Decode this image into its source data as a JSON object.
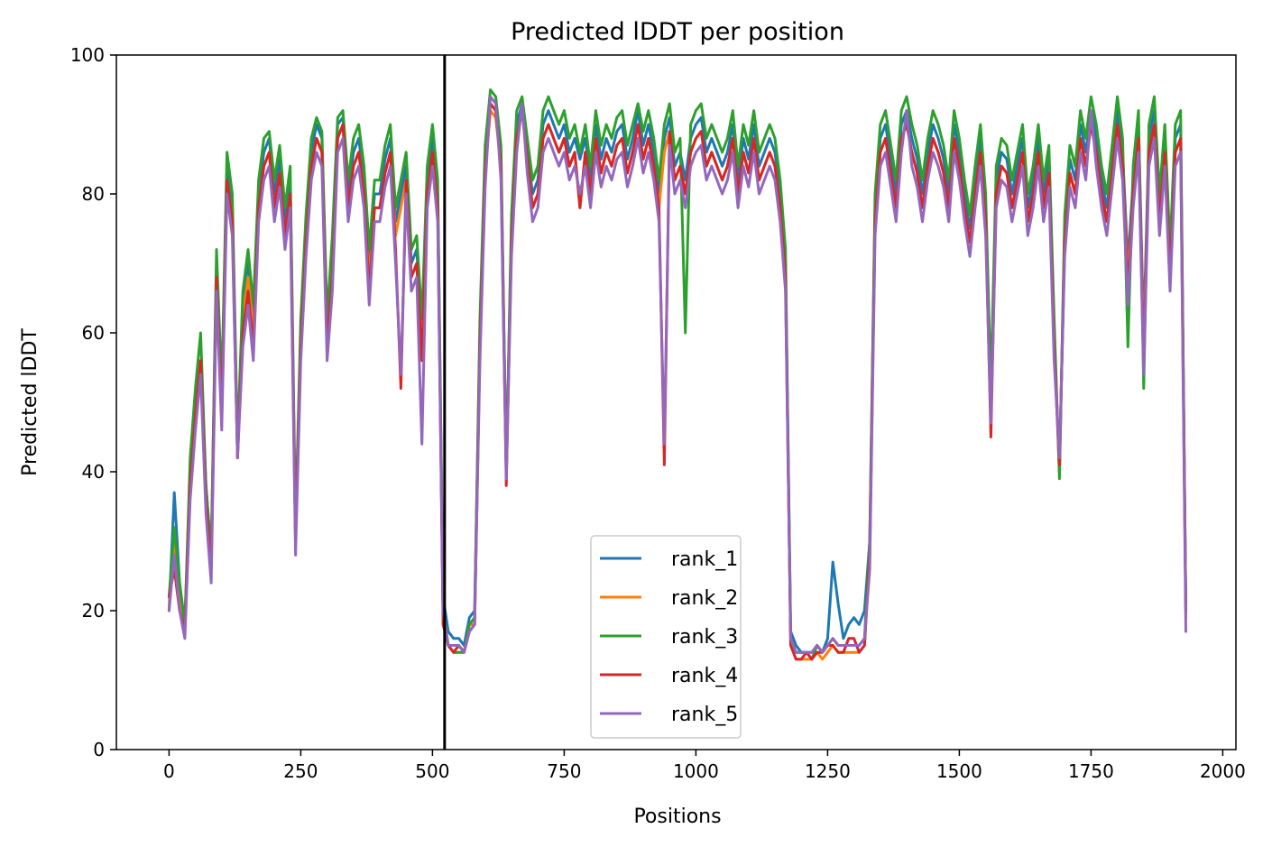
{
  "chart_data": {
    "type": "line",
    "title": "Predicted lDDT per position",
    "xlabel": "Positions",
    "ylabel": "Predicted lDDT",
    "xlim": [
      -100,
      2025
    ],
    "ylim": [
      0,
      100
    ],
    "xticks": [
      "0",
      "250",
      "500",
      "750",
      "1000",
      "1250",
      "1500",
      "1750",
      "2000"
    ],
    "yticks": [
      "0",
      "20",
      "40",
      "60",
      "80",
      "100"
    ],
    "vline_x": 523,
    "legend": {
      "placement": "lower-center"
    },
    "grid": false,
    "x": [
      0,
      10,
      20,
      30,
      40,
      50,
      60,
      70,
      80,
      90,
      100,
      110,
      120,
      130,
      140,
      150,
      160,
      170,
      180,
      190,
      200,
      210,
      220,
      230,
      240,
      250,
      260,
      270,
      280,
      290,
      300,
      310,
      320,
      330,
      340,
      350,
      360,
      370,
      380,
      390,
      400,
      410,
      420,
      430,
      440,
      450,
      460,
      470,
      480,
      490,
      500,
      510,
      520,
      530,
      540,
      550,
      560,
      570,
      580,
      590,
      600,
      610,
      620,
      630,
      640,
      650,
      660,
      670,
      680,
      690,
      700,
      710,
      720,
      730,
      740,
      750,
      760,
      770,
      780,
      790,
      800,
      810,
      820,
      830,
      840,
      850,
      860,
      870,
      880,
      890,
      900,
      910,
      920,
      930,
      940,
      950,
      960,
      970,
      980,
      990,
      1000,
      1010,
      1020,
      1030,
      1040,
      1050,
      1060,
      1070,
      1080,
      1090,
      1100,
      1110,
      1120,
      1130,
      1140,
      1150,
      1160,
      1170,
      1180,
      1190,
      1200,
      1210,
      1220,
      1230,
      1240,
      1250,
      1260,
      1270,
      1280,
      1290,
      1300,
      1310,
      1320,
      1330,
      1340,
      1350,
      1360,
      1370,
      1380,
      1390,
      1400,
      1410,
      1420,
      1430,
      1440,
      1450,
      1460,
      1470,
      1480,
      1490,
      1500,
      1510,
      1520,
      1530,
      1540,
      1550,
      1560,
      1570,
      1580,
      1590,
      1600,
      1610,
      1620,
      1630,
      1640,
      1650,
      1660,
      1670,
      1680,
      1690,
      1700,
      1710,
      1720,
      1730,
      1740,
      1750,
      1760,
      1770,
      1780,
      1790,
      1800,
      1810,
      1820,
      1830,
      1840,
      1850,
      1860,
      1870,
      1880,
      1890,
      1900,
      1910,
      1920,
      1930
    ],
    "series": [
      {
        "name": "rank_1",
        "color": "#1f77b4",
        "values": [
          20,
          37,
          24,
          18,
          40,
          50,
          56,
          38,
          28,
          70,
          50,
          84,
          78,
          42,
          65,
          70,
          62,
          80,
          86,
          88,
          80,
          85,
          76,
          82,
          30,
          60,
          75,
          86,
          90,
          88,
          60,
          72,
          90,
          91,
          80,
          86,
          88,
          82,
          70,
          80,
          80,
          85,
          88,
          76,
          80,
          84,
          70,
          72,
          60,
          82,
          88,
          80,
          22,
          17,
          16,
          16,
          15,
          19,
          20,
          60,
          85,
          93,
          92,
          85,
          40,
          75,
          90,
          93,
          86,
          80,
          82,
          90,
          92,
          90,
          88,
          90,
          86,
          88,
          85,
          88,
          82,
          90,
          85,
          88,
          86,
          89,
          90,
          85,
          88,
          92,
          87,
          90,
          86,
          80,
          88,
          91,
          84,
          86,
          82,
          88,
          90,
          91,
          86,
          88,
          86,
          84,
          86,
          90,
          82,
          88,
          85,
          90,
          84,
          86,
          88,
          86,
          80,
          70,
          17,
          15,
          14,
          14,
          14,
          15,
          14,
          16,
          27,
          21,
          16,
          18,
          19,
          18,
          20,
          30,
          78,
          88,
          90,
          85,
          80,
          90,
          92,
          88,
          85,
          80,
          86,
          90,
          88,
          85,
          80,
          90,
          86,
          80,
          75,
          82,
          88,
          78,
          50,
          82,
          86,
          85,
          80,
          84,
          88,
          78,
          82,
          88,
          80,
          85,
          60,
          40,
          75,
          85,
          82,
          90,
          86,
          92,
          88,
          82,
          78,
          85,
          92,
          86,
          70,
          82,
          90,
          60,
          88,
          92,
          78,
          88,
          70,
          88,
          90,
          20
        ]
      },
      {
        "name": "rank_2",
        "color": "#ff7f0e",
        "values": [
          20,
          30,
          22,
          17,
          38,
          48,
          55,
          36,
          26,
          68,
          48,
          82,
          76,
          42,
          62,
          68,
          60,
          78,
          84,
          86,
          78,
          83,
          74,
          80,
          30,
          58,
          73,
          84,
          88,
          86,
          58,
          70,
          88,
          90,
          78,
          84,
          86,
          80,
          68,
          78,
          78,
          83,
          86,
          74,
          78,
          82,
          68,
          70,
          58,
          80,
          86,
          78,
          20,
          15,
          14,
          14,
          14,
          18,
          18,
          58,
          83,
          92,
          91,
          84,
          40,
          73,
          88,
          92,
          85,
          78,
          80,
          88,
          90,
          88,
          86,
          88,
          84,
          86,
          78,
          86,
          80,
          88,
          83,
          86,
          84,
          87,
          88,
          83,
          86,
          90,
          85,
          88,
          84,
          78,
          86,
          89,
          82,
          84,
          80,
          86,
          88,
          89,
          84,
          86,
          84,
          82,
          84,
          88,
          80,
          86,
          83,
          88,
          82,
          84,
          86,
          84,
          78,
          68,
          15,
          13,
          13,
          13,
          13,
          14,
          13,
          14,
          15,
          14,
          14,
          14,
          14,
          14,
          15,
          28,
          76,
          86,
          88,
          83,
          78,
          88,
          90,
          86,
          83,
          78,
          84,
          88,
          86,
          83,
          78,
          88,
          84,
          78,
          73,
          80,
          86,
          76,
          48,
          80,
          84,
          83,
          78,
          82,
          86,
          76,
          80,
          86,
          78,
          83,
          58,
          40,
          73,
          83,
          80,
          88,
          84,
          90,
          86,
          80,
          76,
          83,
          90,
          84,
          68,
          80,
          88,
          58,
          86,
          90,
          76,
          86,
          68,
          86,
          88,
          19
        ]
      },
      {
        "name": "rank_3",
        "color": "#2ca02c",
        "values": [
          22,
          32,
          24,
          18,
          42,
          52,
          60,
          38,
          28,
          72,
          52,
          86,
          80,
          44,
          66,
          72,
          64,
          82,
          88,
          89,
          82,
          87,
          78,
          84,
          32,
          62,
          77,
          88,
          91,
          89,
          62,
          74,
          91,
          92,
          82,
          88,
          90,
          84,
          72,
          82,
          82,
          87,
          90,
          78,
          82,
          86,
          72,
          74,
          62,
          84,
          90,
          82,
          20,
          15,
          14,
          14,
          14,
          18,
          19,
          62,
          87,
          95,
          94,
          87,
          40,
          77,
          92,
          94,
          88,
          82,
          84,
          92,
          94,
          92,
          90,
          92,
          88,
          90,
          86,
          90,
          84,
          92,
          87,
          90,
          88,
          91,
          92,
          87,
          90,
          93,
          89,
          92,
          88,
          82,
          90,
          93,
          86,
          88,
          60,
          90,
          92,
          93,
          88,
          90,
          88,
          86,
          88,
          92,
          84,
          90,
          87,
          92,
          86,
          88,
          90,
          88,
          82,
          72,
          16,
          14,
          14,
          14,
          13,
          15,
          14,
          15,
          16,
          15,
          15,
          15,
          15,
          15,
          16,
          30,
          80,
          90,
          92,
          87,
          82,
          92,
          94,
          90,
          87,
          82,
          88,
          92,
          90,
          87,
          82,
          92,
          88,
          82,
          77,
          84,
          90,
          80,
          52,
          84,
          88,
          87,
          82,
          86,
          90,
          80,
          84,
          90,
          82,
          87,
          62,
          39,
          77,
          87,
          84,
          92,
          88,
          94,
          90,
          84,
          80,
          87,
          94,
          88,
          58,
          84,
          92,
          52,
          90,
          94,
          80,
          90,
          72,
          90,
          92,
          20
        ]
      },
      {
        "name": "rank_4",
        "color": "#d62728",
        "values": [
          22,
          26,
          20,
          17,
          38,
          48,
          56,
          36,
          26,
          68,
          48,
          82,
          76,
          42,
          60,
          66,
          58,
          78,
          84,
          86,
          78,
          83,
          74,
          80,
          30,
          58,
          73,
          84,
          88,
          86,
          58,
          68,
          88,
          90,
          78,
          84,
          86,
          80,
          66,
          78,
          78,
          83,
          86,
          72,
          52,
          82,
          68,
          70,
          56,
          80,
          86,
          78,
          18,
          15,
          14,
          15,
          14,
          17,
          18,
          58,
          83,
          93,
          92,
          84,
          38,
          73,
          88,
          92,
          85,
          78,
          80,
          88,
          90,
          88,
          86,
          88,
          84,
          86,
          78,
          86,
          80,
          88,
          83,
          86,
          84,
          87,
          88,
          83,
          86,
          90,
          85,
          88,
          84,
          78,
          41,
          89,
          82,
          84,
          80,
          86,
          88,
          89,
          84,
          86,
          84,
          82,
          84,
          88,
          80,
          86,
          83,
          88,
          82,
          84,
          86,
          84,
          78,
          68,
          15,
          13,
          13,
          14,
          13,
          14,
          14,
          15,
          15,
          14,
          14,
          16,
          16,
          14,
          15,
          28,
          76,
          86,
          88,
          83,
          78,
          88,
          90,
          86,
          83,
          78,
          84,
          88,
          86,
          83,
          78,
          88,
          84,
          78,
          73,
          80,
          86,
          76,
          45,
          80,
          84,
          83,
          78,
          82,
          86,
          76,
          80,
          86,
          78,
          83,
          58,
          41,
          73,
          83,
          80,
          88,
          84,
          90,
          86,
          80,
          76,
          83,
          90,
          84,
          66,
          80,
          88,
          56,
          86,
          90,
          76,
          86,
          68,
          86,
          88,
          20
        ]
      },
      {
        "name": "rank_5",
        "color": "#9467bd",
        "values": [
          20,
          28,
          20,
          16,
          36,
          46,
          54,
          34,
          24,
          66,
          46,
          80,
          74,
          42,
          58,
          64,
          56,
          76,
          82,
          84,
          76,
          81,
          72,
          78,
          28,
          56,
          71,
          82,
          86,
          84,
          56,
          66,
          86,
          88,
          76,
          82,
          84,
          78,
          64,
          76,
          76,
          81,
          84,
          70,
          54,
          80,
          66,
          68,
          44,
          78,
          84,
          76,
          20,
          15,
          15,
          15,
          14,
          17,
          18,
          56,
          81,
          94,
          93,
          82,
          39,
          71,
          86,
          93,
          83,
          76,
          78,
          86,
          88,
          86,
          84,
          86,
          82,
          84,
          80,
          84,
          78,
          86,
          81,
          84,
          82,
          85,
          86,
          81,
          84,
          88,
          83,
          86,
          82,
          76,
          44,
          87,
          80,
          82,
          78,
          84,
          86,
          87,
          82,
          84,
          82,
          80,
          82,
          86,
          78,
          84,
          81,
          86,
          80,
          82,
          84,
          82,
          76,
          66,
          16,
          14,
          14,
          14,
          14,
          15,
          14,
          15,
          16,
          15,
          15,
          15,
          15,
          15,
          16,
          26,
          74,
          84,
          86,
          81,
          76,
          86,
          92,
          84,
          81,
          76,
          82,
          86,
          84,
          81,
          76,
          86,
          82,
          76,
          71,
          78,
          84,
          74,
          47,
          78,
          82,
          81,
          76,
          80,
          84,
          74,
          78,
          84,
          76,
          81,
          56,
          42,
          71,
          81,
          78,
          86,
          82,
          92,
          84,
          78,
          74,
          81,
          88,
          82,
          64,
          78,
          86,
          54,
          84,
          88,
          74,
          84,
          66,
          84,
          86,
          17
        ]
      }
    ]
  }
}
